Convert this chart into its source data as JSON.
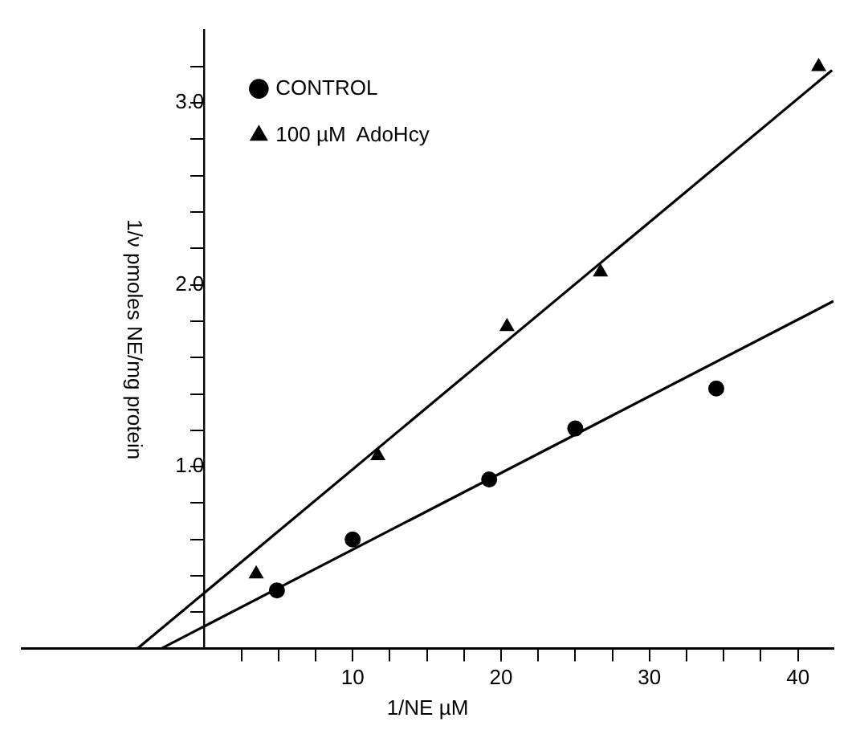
{
  "chart_data": {
    "type": "scatter",
    "xlabel": "1/NE µM",
    "ylabel": "1/ν pmoles NE/mg protein",
    "xlim": [
      -12.3,
      42.4
    ],
    "ylim": [
      0,
      3.4
    ],
    "xticks": [
      {
        "value": 2.5,
        "label": null
      },
      {
        "value": 5,
        "label": null
      },
      {
        "value": 7.5,
        "label": null
      },
      10,
      {
        "value": 12.5,
        "label": null
      },
      {
        "value": 15,
        "label": null
      },
      {
        "value": 17.5,
        "label": null
      },
      20,
      {
        "value": 22.5,
        "label": null
      },
      {
        "value": 25,
        "label": null
      },
      {
        "value": 27.5,
        "label": null
      },
      30,
      {
        "value": 32.5,
        "label": null
      },
      {
        "value": 35,
        "label": null
      },
      {
        "value": 37.5,
        "label": null
      },
      40
    ],
    "yticks": [
      {
        "value": 0.2,
        "label": null
      },
      {
        "value": 0.4,
        "label": null
      },
      {
        "value": 0.6,
        "label": null
      },
      {
        "value": 0.8,
        "label": null
      },
      {
        "value": 1,
        "label": "1.0"
      },
      {
        "value": 1.2,
        "label": null
      },
      {
        "value": 1.4,
        "label": null
      },
      {
        "value": 1.6,
        "label": null
      },
      {
        "value": 1.8,
        "label": null
      },
      {
        "value": 2,
        "label": "2.0"
      },
      {
        "value": 2.2,
        "label": null
      },
      {
        "value": 2.4,
        "label": null
      },
      {
        "value": 2.6,
        "label": null
      },
      {
        "value": 2.8,
        "label": null
      },
      {
        "value": 3,
        "label": "3.0"
      },
      {
        "value": 3.2,
        "label": null
      }
    ],
    "grid": false,
    "legend": "top left",
    "series": [
      {
        "name": "CONTROL",
        "color": "#000000",
        "marker": "circle",
        "x": [
          4.9,
          10,
          19.2,
          25,
          34.5
        ],
        "values": [
          0.32,
          0.6,
          0.93,
          1.21,
          1.43
        ]
      },
      {
        "name": "100 µM  AdoHcy",
        "color": "#000000",
        "marker": "triangle",
        "x": [
          3.5,
          11.7,
          20.4,
          26.7,
          41.4
        ],
        "values": [
          0.41,
          1.06,
          1.77,
          2.07,
          3.2
        ]
      },
      {
        "type": "line",
        "color": "#000000",
        "marker": "none",
        "x": [
          -2.9,
          42.4
        ],
        "values": [
          0,
          1.91
        ]
      },
      {
        "type": "line",
        "color": "#000000",
        "marker": "none",
        "x": [
          -4.5,
          42.3
        ],
        "values": [
          0,
          3.18
        ]
      }
    ]
  }
}
